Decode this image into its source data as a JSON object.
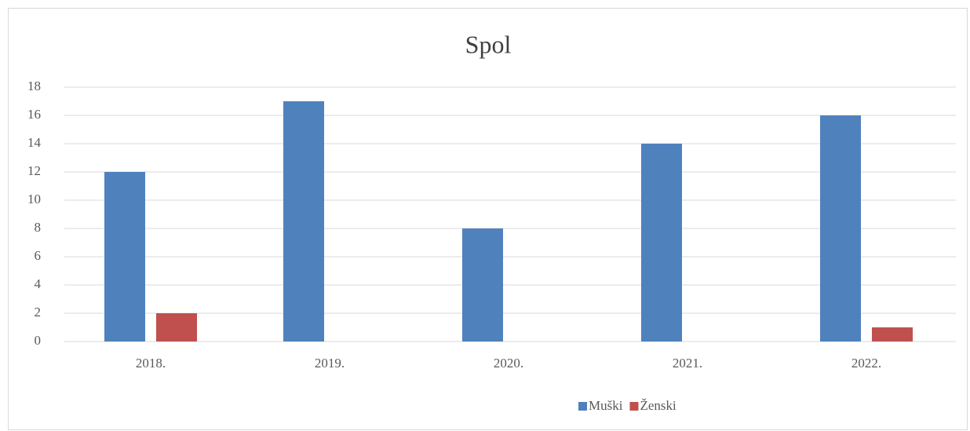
{
  "chart_data": {
    "type": "bar",
    "title": "Spol",
    "categories": [
      "2018.",
      "2019.",
      "2020.",
      "2021.",
      "2022."
    ],
    "series": [
      {
        "name": "Muški",
        "color": "#4f81bd",
        "values": [
          12,
          17,
          8,
          14,
          16
        ]
      },
      {
        "name": "Ženski",
        "color": "#c0504d",
        "values": [
          2,
          0,
          0,
          0,
          1
        ]
      }
    ],
    "ylim": [
      0,
      18
    ],
    "yticks": [
      0,
      2,
      4,
      6,
      8,
      10,
      12,
      14,
      16,
      18
    ],
    "grid": true,
    "legend": "bottom"
  }
}
